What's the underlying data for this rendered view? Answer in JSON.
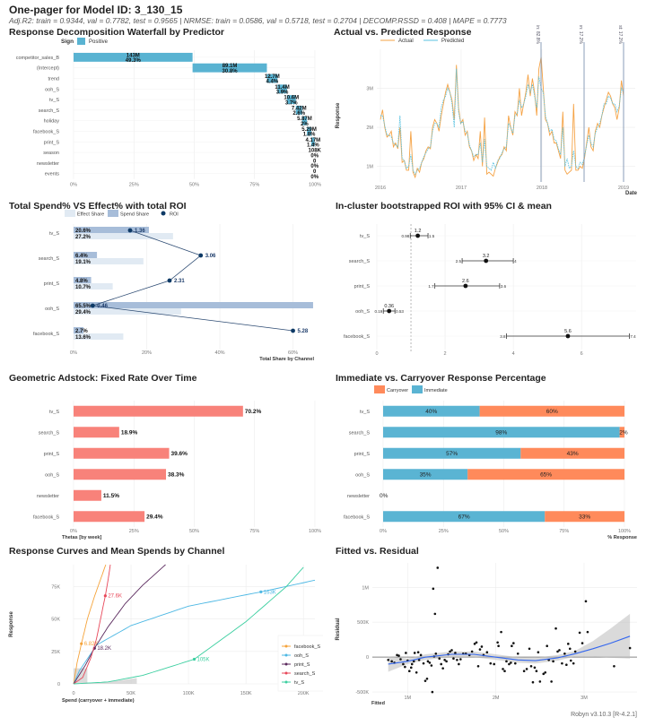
{
  "header": {
    "title": "One-pager for Model ID: 3_130_15",
    "subtitle": "Adj.R2: train = 0.9344, val = 0.7782, test = 0.9565 | NRMSE: train = 0.0586, val = 0.5718, test = 0.2704 | DECOMP.RSSD = 0.408 | MAPE = 0.7773"
  },
  "footer": "Robyn v3.10.3 [R-4.2.1]",
  "colors": {
    "positive": "#59B3D2",
    "actual": "#F5A346",
    "predicted": "#5AC2E0",
    "effect_share": "#E1EAF3",
    "spend_share": "#A7BDD9",
    "roi": "#0E3A66",
    "adstock": "#F8827A",
    "carryover": "#FF8A5B",
    "immediate": "#5AB4D3",
    "smooth": "#3366EE"
  },
  "chart_data": [
    {
      "id": "waterfall",
      "type": "bar",
      "title": "Response Decomposition Waterfall by Predictor",
      "legend_title": "Sign",
      "legend": [
        "Positive"
      ],
      "categories": [
        "competitor_sales_B",
        "(Intercept)",
        "trend",
        "ooh_S",
        "tv_S",
        "search_S",
        "holiday",
        "facebook_S",
        "print_S",
        "season",
        "newsletter",
        "events"
      ],
      "values": [
        "143M",
        "89.1M",
        "12.7M",
        "11.4M",
        "10.6M",
        "7.42M",
        "5.87M",
        "5.29M",
        "4.17M",
        "108K",
        "0",
        "0"
      ],
      "percent": [
        49.3,
        30.8,
        4.4,
        3.9,
        3.7,
        2.6,
        2,
        1.8,
        1.4,
        0,
        0,
        0
      ],
      "percent_labels": [
        "49.3%",
        "30.8%",
        "4.4%",
        "3.9%",
        "3.7%",
        "2.6%",
        "2%",
        "1.8%",
        "1.4%",
        "0%",
        "0%",
        "0%"
      ],
      "xticks": [
        "0%",
        "25%",
        "50%",
        "75%",
        "100%"
      ],
      "xlim": [
        0,
        100
      ]
    },
    {
      "id": "actual_vs_predicted",
      "type": "line",
      "title": "Actual vs. Predicted Response",
      "legend": [
        "Actual",
        "Predicted"
      ],
      "xlabel": "Date",
      "ylabel": "Response",
      "xticks": [
        "2016",
        "2017",
        "2018",
        "2019"
      ],
      "yticks": [
        "1M",
        "2M",
        "3M"
      ],
      "ylim": [
        0.6,
        4.0
      ],
      "split_labels": [
        "Train: 82.8%",
        "Validation: 17.2%",
        "Test: 17.2%"
      ],
      "actual": [
        2.2,
        2.45,
        2.0,
        1.75,
        1.8,
        1.9,
        1.5,
        1.6,
        1.45,
        2.0,
        1.1,
        1.15,
        0.9,
        0.9,
        1.9,
        0.85,
        0.72,
        0.95,
        0.85,
        1.1,
        1.2,
        1.4,
        1.5,
        1.45,
        2.0,
        2.2,
        2.1,
        1.9,
        2.3,
        2.6,
        2.9,
        3.1,
        2.9,
        2.7,
        2.2,
        3.6,
        2.5,
        2.1,
        2.2,
        1.8,
        1.9,
        1.5,
        1.4,
        1.15,
        1.3,
        1.2,
        1.9,
        1.0,
        2.25,
        0.8,
        0.85,
        0.8,
        0.75,
        0.95,
        1.1,
        1.25,
        1.3,
        1.5,
        1.4,
        2.3,
        2.0,
        1.8,
        2.4,
        2.3,
        3.0,
        2.3,
        2.6,
        2.9,
        3.35,
        2.8,
        3.25,
        2.9,
        2.3,
        3.5,
        3.8,
        3.0,
        2.2,
        2.1,
        1.8,
        1.9,
        1.6,
        1.6,
        1.4,
        1.2,
        2.4,
        0.9,
        0.8,
        0.85,
        0.9,
        2.6,
        0.9,
        0.9,
        1.0,
        0.95,
        1.2,
        1.6,
        2.0,
        1.5,
        1.4,
        1.9,
        2.1,
        2.0,
        2.3,
        2.5,
        2.7,
        2.9,
        2.8,
        2.6,
        2.5,
        2.2,
        2.5,
        3.2,
        2.8
      ],
      "predicted": [
        2.3,
        2.3,
        2.05,
        1.8,
        1.8,
        1.75,
        1.6,
        1.55,
        1.5,
        2.3,
        1.2,
        1.15,
        0.95,
        1.0,
        1.3,
        0.9,
        0.8,
        0.9,
        0.95,
        1.1,
        1.25,
        1.35,
        1.45,
        1.5,
        1.9,
        2.1,
        2.1,
        2.0,
        2.5,
        2.7,
        2.8,
        3.0,
        2.9,
        2.6,
        2.0,
        3.5,
        2.4,
        2.1,
        2.15,
        1.9,
        1.85,
        1.55,
        1.4,
        1.25,
        1.3,
        1.3,
        1.6,
        1.1,
        1.7,
        1.0,
        0.95,
        0.9,
        1.1,
        0.95,
        1.15,
        1.2,
        1.35,
        1.45,
        1.5,
        2.1,
        2.0,
        1.85,
        2.3,
        2.35,
        2.7,
        2.5,
        2.6,
        2.8,
        3.1,
        2.9,
        3.1,
        2.8,
        2.5,
        3.3,
        3.0,
        2.9,
        2.3,
        2.1,
        1.9,
        1.95,
        1.7,
        1.65,
        1.45,
        1.3,
        2.0,
        1.0,
        1.2,
        0.95,
        1.0,
        1.4,
        1.0,
        0.95,
        1.1,
        1.05,
        1.25,
        1.55,
        1.8,
        1.6,
        1.5,
        1.85,
        2.0,
        2.1,
        2.3,
        2.6,
        2.6,
        2.8,
        2.75,
        2.6,
        2.6,
        2.4,
        2.55,
        3.0,
        2.9
      ]
    },
    {
      "id": "spend_vs_effect",
      "type": "bar",
      "title": "Total Spend% VS Effect% with total ROI",
      "legend": [
        "Effect Share",
        "Spend Share",
        "ROI"
      ],
      "xlabel": "Total Share by Channel",
      "xticks": [
        "0%",
        "20%",
        "40%",
        "60%"
      ],
      "xlim": [
        0,
        66
      ],
      "categories": [
        "tv_S",
        "search_S",
        "print_S",
        "ooh_S",
        "facebook_S"
      ],
      "series": [
        {
          "name": "Spend Share",
          "values": [
            20.6,
            6.4,
            4.8,
            65.5,
            2.7
          ],
          "labels": [
            "20.6%",
            "6.4%",
            "4.8%",
            "65.5%",
            "2.7%"
          ]
        },
        {
          "name": "Effect Share",
          "values": [
            27.2,
            19.1,
            10.7,
            29.4,
            13.6
          ],
          "labels": [
            "27.2%",
            "19.1%",
            "10.7%",
            "29.4%",
            "13.6%"
          ]
        },
        {
          "name": "ROI",
          "values": [
            1.36,
            3.06,
            2.31,
            0.46,
            5.28
          ],
          "labels": [
            "1.36",
            "3.06",
            "2.31",
            "0.46",
            "5.28"
          ]
        }
      ],
      "roi_max": 5.28
    },
    {
      "id": "bootstrap_roi",
      "type": "scatter",
      "title": "In-cluster bootstrapped ROI with 95% CI & mean",
      "categories": [
        "tv_S",
        "search_S",
        "print_S",
        "ooh_S",
        "facebook_S"
      ],
      "mean": [
        1.2,
        3.2,
        2.6,
        0.36,
        5.6
      ],
      "mean_labels": [
        "1.2",
        "3.2",
        "2.6",
        "0.36",
        "5.6"
      ],
      "lower": [
        0.98,
        2.5,
        1.7,
        0.19,
        3.8
      ],
      "lower_labels": [
        "0.98",
        "2.5",
        "1.7",
        "0.19",
        "3.8"
      ],
      "upper": [
        1.5,
        4,
        3.6,
        0.53,
        7.4
      ],
      "upper_labels": [
        "1.5",
        "4",
        "3.6",
        "0.53",
        "7.4"
      ],
      "xticks": [
        "0",
        "2",
        "4",
        "6"
      ],
      "xlim": [
        0,
        7.6
      ],
      "reference_line": 1
    },
    {
      "id": "adstock",
      "type": "bar",
      "title": "Geometric Adstock: Fixed Rate Over Time",
      "xlabel": "Thetas [by week]",
      "categories": [
        "tv_S",
        "search_S",
        "print_S",
        "ooh_S",
        "newsletter",
        "facebook_S"
      ],
      "values": [
        70.2,
        18.9,
        39.6,
        38.3,
        11.5,
        29.4
      ],
      "labels": [
        "70.2%",
        "18.9%",
        "39.6%",
        "38.3%",
        "11.5%",
        "29.4%"
      ],
      "xticks": [
        "0%",
        "25%",
        "50%",
        "75%",
        "100%"
      ],
      "xlim": [
        0,
        100
      ]
    },
    {
      "id": "immediate_carryover",
      "type": "bar",
      "title": "Immediate vs. Carryover Response Percentage",
      "xlabel": "% Response",
      "legend": [
        "Carryover",
        "Immediate"
      ],
      "categories": [
        "tv_S",
        "search_S",
        "print_S",
        "ooh_S",
        "newsletter",
        "facebook_S"
      ],
      "series": [
        {
          "name": "Immediate",
          "values": [
            40,
            98,
            57,
            35,
            0,
            67
          ],
          "labels": [
            "40%",
            "98%",
            "57%",
            "35%",
            "0%",
            "67%"
          ]
        },
        {
          "name": "Carryover",
          "values": [
            60,
            2,
            43,
            65,
            0,
            33
          ],
          "labels": [
            "60%",
            "2%",
            "43%",
            "65%",
            "",
            "33%"
          ]
        }
      ],
      "xticks": [
        "0%",
        "25%",
        "50%",
        "75%",
        "100%"
      ],
      "xlim": [
        0,
        100
      ]
    },
    {
      "id": "response_curves",
      "type": "line",
      "title": "Response Curves and Mean Spends by Channel",
      "xlabel": "Spend (carryover + immediate)",
      "ylabel": "Response",
      "xticks": [
        "0",
        "50K",
        "100K",
        "150K",
        "200K"
      ],
      "yticks": [
        "0",
        "25K",
        "50K",
        "75K"
      ],
      "xlim": [
        0,
        210000
      ],
      "ylim": [
        0,
        92000
      ],
      "legend": [
        "facebook_S",
        "ooh_S",
        "print_S",
        "search_S",
        "tv_S"
      ],
      "series": [
        {
          "name": "facebook_S",
          "color": "#F5A33A",
          "mean_spend": 6820,
          "mean_label": "6.82K",
          "mean_response": 31000,
          "curve_x": [
            0,
            3000,
            6820,
            12000,
            18000,
            24000,
            28000
          ],
          "curve_y": [
            0,
            16000,
            31000,
            50000,
            67000,
            82000,
            92000
          ]
        },
        {
          "name": "ooh_S",
          "color": "#4DB8E4",
          "mean_spend": 163000,
          "mean_label": "163K",
          "mean_response": 71000,
          "curve_x": [
            0,
            5000,
            20000,
            50000,
            100000,
            163000,
            210000
          ],
          "curve_y": [
            0,
            10000,
            30000,
            45000,
            60000,
            71000,
            80000
          ]
        },
        {
          "name": "print_S",
          "color": "#5B2A5E",
          "mean_spend": 18200,
          "mean_label": "18.2K",
          "mean_response": 27500,
          "curve_x": [
            0,
            10000,
            18200,
            30000,
            45000,
            60000,
            80000
          ],
          "curve_y": [
            0,
            14000,
            27500,
            44000,
            62000,
            76000,
            92000
          ]
        },
        {
          "name": "search_S",
          "color": "#E8485A",
          "mean_spend": 27600,
          "mean_label": "27.6K",
          "mean_response": 68000,
          "curve_x": [
            0,
            8000,
            15000,
            20000,
            27600,
            30000,
            32000
          ],
          "curve_y": [
            0,
            5000,
            20000,
            35000,
            68000,
            80000,
            92000
          ]
        },
        {
          "name": "tv_S",
          "color": "#3CCFA0",
          "mean_spend": 105000,
          "mean_label": "105K",
          "mean_response": 19000,
          "curve_x": [
            0,
            30000,
            60000,
            105000,
            150000,
            185000,
            200000
          ],
          "curve_y": [
            0,
            1500,
            6500,
            19000,
            48000,
            75000,
            90000
          ]
        }
      ]
    },
    {
      "id": "fitted_vs_residual",
      "type": "scatter",
      "title": "Fitted vs. Residual",
      "xlabel": "Fitted",
      "ylabel": "Residual",
      "xticks": [
        "1M",
        "2M",
        "3M"
      ],
      "yticks": [
        "-500K",
        "0",
        "500K",
        "1M"
      ],
      "xlim": [
        0.6,
        3.6
      ],
      "ylim": [
        -550000,
        1350000
      ],
      "points": [
        [
          0.78,
          -40000
        ],
        [
          0.82,
          -60000
        ],
        [
          0.85,
          -80000
        ],
        [
          0.88,
          30000
        ],
        [
          0.9,
          20000
        ],
        [
          0.92,
          -30000
        ],
        [
          0.95,
          -100000
        ],
        [
          0.97,
          -140000
        ],
        [
          0.98,
          60000
        ],
        [
          1.0,
          -50000
        ],
        [
          1.02,
          -200000
        ],
        [
          1.04,
          -150000
        ],
        [
          1.05,
          -100000
        ],
        [
          1.07,
          -60000
        ],
        [
          1.08,
          60000
        ],
        [
          1.1,
          -220000
        ],
        [
          1.12,
          70000
        ],
        [
          1.13,
          -40000
        ],
        [
          1.15,
          30000
        ],
        [
          1.18,
          -90000
        ],
        [
          1.2,
          -340000
        ],
        [
          1.22,
          -310000
        ],
        [
          1.23,
          -60000
        ],
        [
          1.25,
          -80000
        ],
        [
          1.27,
          -120000
        ],
        [
          1.28,
          -500000
        ],
        [
          1.29,
          980000
        ],
        [
          1.3,
          10000
        ],
        [
          1.31,
          620000
        ],
        [
          1.32,
          50000
        ],
        [
          1.34,
          1280000
        ],
        [
          1.36,
          -20000
        ],
        [
          1.38,
          -100000
        ],
        [
          1.4,
          -160000
        ],
        [
          1.42,
          -40000
        ],
        [
          1.44,
          -60000
        ],
        [
          1.46,
          40000
        ],
        [
          1.48,
          80000
        ],
        [
          1.5,
          100000
        ],
        [
          1.52,
          -20000
        ],
        [
          1.54,
          60000
        ],
        [
          1.56,
          -40000
        ],
        [
          1.58,
          -100000
        ],
        [
          1.6,
          -30000
        ],
        [
          1.63,
          50000
        ],
        [
          1.66,
          50000
        ],
        [
          1.7,
          30000
        ],
        [
          1.73,
          80000
        ],
        [
          1.76,
          190000
        ],
        [
          1.78,
          210000
        ],
        [
          1.8,
          -130000
        ],
        [
          1.82,
          110000
        ],
        [
          1.84,
          150000
        ],
        [
          1.86,
          30000
        ],
        [
          1.9,
          70000
        ],
        [
          1.94,
          -90000
        ],
        [
          1.98,
          -100000
        ],
        [
          2.02,
          210000
        ],
        [
          2.03,
          160000
        ],
        [
          2.06,
          360000
        ],
        [
          2.08,
          -170000
        ],
        [
          2.1,
          -200000
        ],
        [
          2.12,
          -60000
        ],
        [
          2.15,
          -100000
        ],
        [
          2.17,
          -80000
        ],
        [
          2.18,
          160000
        ],
        [
          2.2,
          200000
        ],
        [
          2.22,
          -90000
        ],
        [
          2.25,
          50000
        ],
        [
          2.32,
          -200000
        ],
        [
          2.35,
          -170000
        ],
        [
          2.38,
          120000
        ],
        [
          2.4,
          -130000
        ],
        [
          2.42,
          -360000
        ],
        [
          2.44,
          -150000
        ],
        [
          2.46,
          -200000
        ],
        [
          2.48,
          70000
        ],
        [
          2.5,
          -350000
        ],
        [
          2.54,
          -240000
        ],
        [
          2.56,
          -220000
        ],
        [
          2.58,
          160000
        ],
        [
          2.6,
          -40000
        ],
        [
          2.63,
          -350000
        ],
        [
          2.65,
          -60000
        ],
        [
          2.68,
          410000
        ],
        [
          2.7,
          80000
        ],
        [
          2.72,
          100000
        ],
        [
          2.75,
          -90000
        ],
        [
          2.78,
          50000
        ],
        [
          2.8,
          -110000
        ],
        [
          2.82,
          190000
        ],
        [
          2.84,
          120000
        ],
        [
          2.85,
          -50000
        ],
        [
          2.88,
          -90000
        ],
        [
          2.9,
          80000
        ],
        [
          2.95,
          350000
        ],
        [
          2.98,
          200000
        ],
        [
          3.02,
          800000
        ],
        [
          3.04,
          360000
        ],
        [
          3.34,
          -130000
        ],
        [
          3.52,
          130000
        ]
      ],
      "smooth": [
        [
          0.78,
          -100000
        ],
        [
          1.0,
          -60000
        ],
        [
          1.2,
          0
        ],
        [
          1.5,
          40000
        ],
        [
          1.75,
          40000
        ],
        [
          2.0,
          0
        ],
        [
          2.25,
          -40000
        ],
        [
          2.45,
          -50000
        ],
        [
          2.7,
          -10000
        ],
        [
          2.9,
          50000
        ],
        [
          3.1,
          120000
        ],
        [
          3.3,
          200000
        ],
        [
          3.52,
          300000
        ]
      ]
    }
  ]
}
